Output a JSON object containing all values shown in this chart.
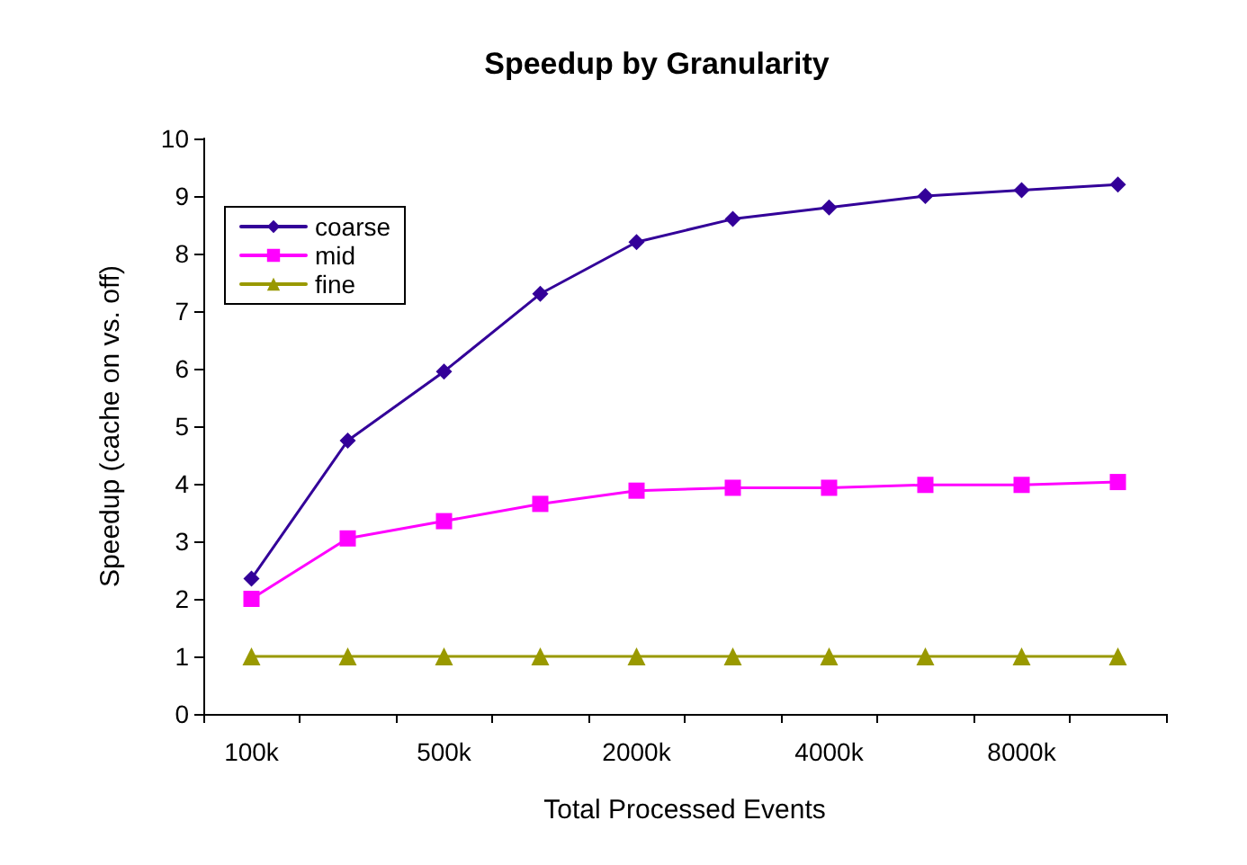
{
  "chart_data": {
    "type": "line",
    "title": "Speedup by Granularity",
    "xlabel": "Total Processed Events",
    "ylabel": "Speedup (cache on vs. off)",
    "categories": [
      "100k",
      null,
      "500k",
      null,
      "2000k",
      null,
      "4000k",
      null,
      "8000k",
      null
    ],
    "series": [
      {
        "name": "coarse",
        "color": "#330099",
        "marker": "diamond",
        "values": [
          2.35,
          4.75,
          5.95,
          7.3,
          8.2,
          8.6,
          8.8,
          9.0,
          9.1,
          9.2
        ]
      },
      {
        "name": "mid",
        "color": "#ff00ff",
        "marker": "square",
        "values": [
          2.0,
          3.05,
          3.35,
          3.65,
          3.88,
          3.93,
          3.93,
          3.98,
          3.98,
          4.03
        ]
      },
      {
        "name": "fine",
        "color": "#999900",
        "marker": "triangle",
        "values": [
          1,
          1,
          1,
          1,
          1,
          1,
          1,
          1,
          1,
          1
        ]
      }
    ],
    "ylim": [
      0,
      10
    ],
    "yticks": [
      0,
      1,
      2,
      3,
      4,
      5,
      6,
      7,
      8,
      9,
      10
    ],
    "grid": false,
    "legend": "top left"
  }
}
